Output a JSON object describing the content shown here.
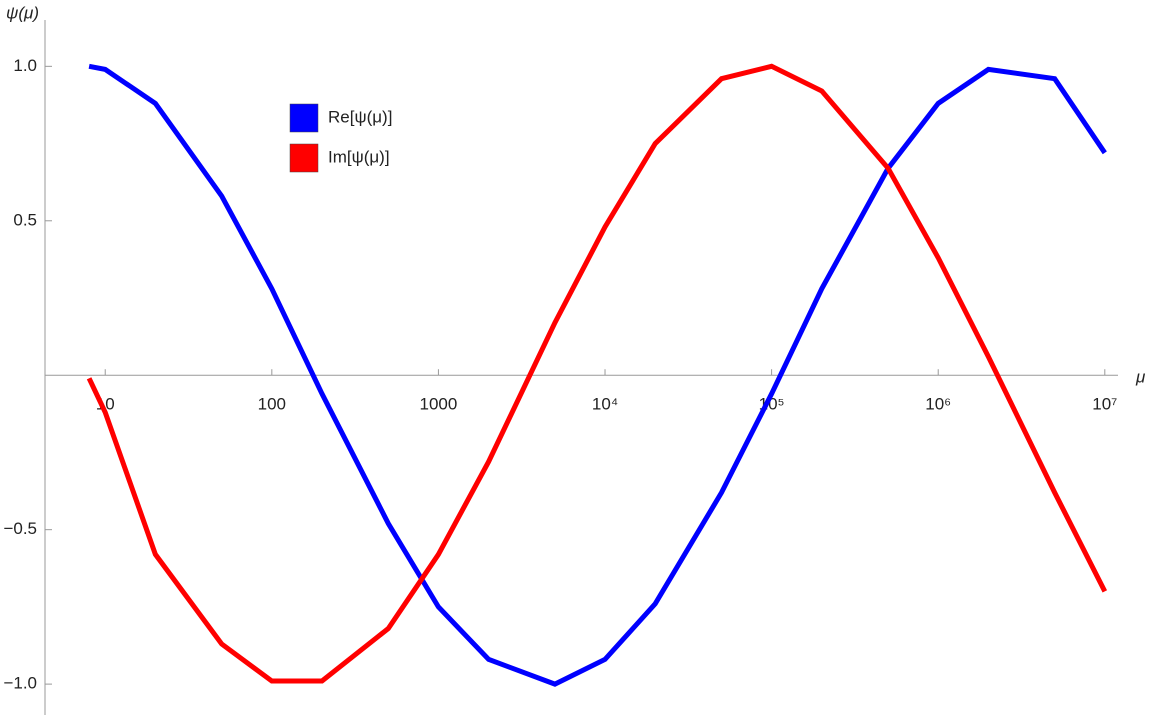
{
  "chart_data": {
    "type": "line",
    "xscale": "log",
    "xlabel": "μ",
    "ylabel": "ψ(μ)",
    "legend": "upper left",
    "x": [
      8,
      10,
      20,
      50,
      100,
      200,
      500,
      1000,
      2000,
      5000,
      10000,
      20000,
      50000,
      100000,
      200000,
      500000,
      1000000,
      2000000,
      5000000,
      10000000
    ],
    "series": [
      {
        "name": "Re[ψ(μ)]",
        "color": "#0000ff",
        "values": [
          1.0,
          0.99,
          0.88,
          0.58,
          0.28,
          -0.06,
          -0.48,
          -0.75,
          -0.92,
          -1.0,
          -0.92,
          -0.74,
          -0.38,
          -0.06,
          0.28,
          0.67,
          0.88,
          0.99,
          0.96,
          0.72
        ]
      },
      {
        "name": "Im[ψ(μ)]",
        "color": "#ff0000",
        "values": [
          -0.01,
          -0.12,
          -0.58,
          -0.87,
          -0.99,
          -0.99,
          -0.82,
          -0.58,
          -0.28,
          0.17,
          0.48,
          0.75,
          0.96,
          1.0,
          0.92,
          0.67,
          0.38,
          0.06,
          -0.38,
          -0.7
        ]
      }
    ],
    "xlim": [
      4.35,
      12000000
    ],
    "ylim": [
      -1.1,
      1.15
    ],
    "xticks": [
      10,
      100,
      1000,
      {
        "value": 10000,
        "label": "10⁴"
      },
      {
        "value": 100000,
        "label": "10⁵"
      },
      {
        "value": 1000000,
        "label": "10⁶"
      },
      {
        "value": 10000000,
        "label": "10⁷"
      }
    ],
    "yticks": [
      {
        "value": -1,
        "label": "−1.0"
      },
      {
        "value": -0.5,
        "label": "−0.5"
      },
      0.5,
      {
        "value": 1,
        "label": "1.0"
      }
    ]
  }
}
